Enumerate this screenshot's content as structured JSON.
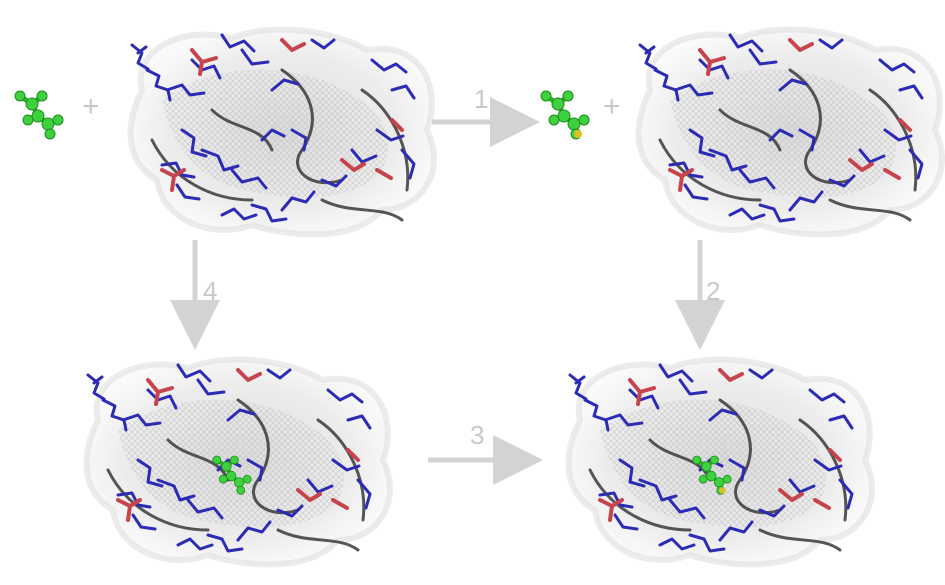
{
  "diagram": {
    "steps": [
      {
        "label": "1"
      },
      {
        "label": "2"
      },
      {
        "label": "3"
      },
      {
        "label": "4"
      }
    ],
    "plus_symbol": "+",
    "colors": {
      "arrow": "#d3d3d3",
      "ligand": "#3dd13d",
      "basic_residues": "#2b2bb5",
      "acidic_residues": "#c8444c",
      "backbone": "#3a3a3a",
      "surface": "#e6e6e6"
    },
    "nodes": [
      {
        "name": "free-ligand",
        "icon": "ligand-icon"
      },
      {
        "name": "free-protein",
        "icon": "protein-icon"
      },
      {
        "name": "modified-ligand",
        "icon": "ligand-icon"
      },
      {
        "name": "protein-complex",
        "icon": "protein-icon"
      }
    ]
  }
}
